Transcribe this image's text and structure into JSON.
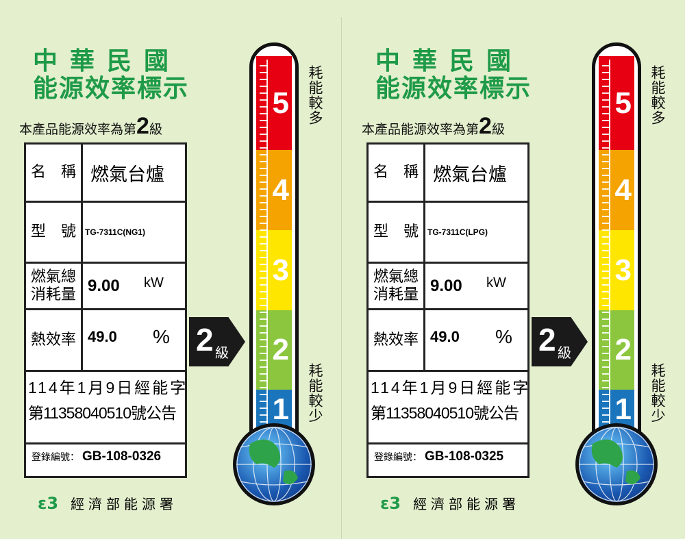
{
  "labels": [
    {
      "title_line1": "中華民國",
      "title_line2": "能源效率標示",
      "grade_prefix": "本產品能源效率為第",
      "grade": "2",
      "grade_suffix": "級",
      "name_label": "名　稱",
      "name_value": "燃氣台爐",
      "model_label": "型　號",
      "model_value": "TG-7311C(NG1)",
      "gas_label": "燃氣總消耗量",
      "gas_value": "9.00",
      "gas_unit": "kW",
      "eff_label": "熱效率",
      "eff_value": "49.0",
      "eff_unit": "%",
      "notice_line1": "114年1月9日經能字",
      "notice_line2": "第11358040510號公告",
      "reg_label": "登錄編號：",
      "reg_value": "GB-108-0326",
      "arrow_grade": "2",
      "arrow_suffix": "級",
      "scale": [
        "5",
        "4",
        "3",
        "2",
        "1"
      ],
      "top_text": "耗能較多",
      "bottom_text": "耗能較少",
      "logo": "ꟷ8",
      "agency": "經濟部能源署"
    },
    {
      "title_line1": "中華民國",
      "title_line2": "能源效率標示",
      "grade_prefix": "本產品能源效率為第",
      "grade": "2",
      "grade_suffix": "級",
      "name_label": "名　稱",
      "name_value": "燃氣台爐",
      "model_label": "型　號",
      "model_value": "TG-7311C(LPG)",
      "gas_label": "燃氣總消耗量",
      "gas_value": "9.00",
      "gas_unit": "kW",
      "eff_label": "熱效率",
      "eff_value": "49.0",
      "eff_unit": "%",
      "notice_line1": "114年1月9日經能字",
      "notice_line2": "第11358040510號公告",
      "reg_label": "登錄編號：",
      "reg_value": "GB-108-0325",
      "arrow_grade": "2",
      "arrow_suffix": "級",
      "scale": [
        "5",
        "4",
        "3",
        "2",
        "1"
      ],
      "top_text": "耗能較多",
      "bottom_text": "耗能較少",
      "logo": "ꟷ8",
      "agency": "經濟部能源署"
    }
  ],
  "scale_colors": [
    "#e60012",
    "#f4a300",
    "#ffe600",
    "#8cc63f",
    "#1b75bc"
  ],
  "title_color": "#1e9a48"
}
